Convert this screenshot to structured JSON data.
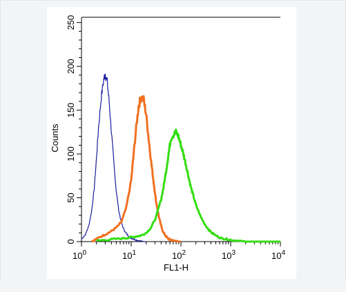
{
  "chart_data": {
    "type": "area",
    "xlabel": "FL1-H",
    "ylabel": "Counts",
    "xscale": "log",
    "xlim": [
      1,
      10000
    ],
    "ylim": [
      0,
      256
    ],
    "x_ticks": [
      {
        "value": 1,
        "base": "10",
        "exp": "0"
      },
      {
        "value": 10,
        "base": "10",
        "exp": "1"
      },
      {
        "value": 100,
        "base": "10",
        "exp": "2"
      },
      {
        "value": 1000,
        "base": "10",
        "exp": "3"
      },
      {
        "value": 10000,
        "base": "10",
        "exp": "4"
      }
    ],
    "y_ticks": [
      {
        "value": 0,
        "label": "0"
      },
      {
        "value": 50,
        "label": "50"
      },
      {
        "value": 100,
        "label": "100"
      },
      {
        "value": 150,
        "label": "150"
      },
      {
        "value": 200,
        "label": "200"
      },
      {
        "value": 250,
        "label": "250"
      }
    ],
    "grid": false,
    "series": [
      {
        "color": "#1a1a9e",
        "stroke_width": 1.2,
        "x": [
          1.0,
          1.2,
          1.4,
          1.6,
          1.8,
          2.0,
          2.2,
          2.5,
          2.8,
          3.0,
          3.3,
          3.6,
          4.0,
          4.5,
          5.0,
          5.6,
          6.3,
          7.1,
          8.0,
          9.0,
          10.0,
          11.2,
          12.6,
          14.1,
          15.8,
          17.8,
          20.0
        ],
        "values": [
          3,
          8,
          18,
          35,
          60,
          95,
          130,
          165,
          185,
          192,
          182,
          160,
          125,
          88,
          58,
          36,
          22,
          14,
          9,
          6,
          4,
          3,
          2,
          1,
          1,
          0,
          0
        ]
      },
      {
        "color": "#f07020",
        "stroke_width": 3,
        "x": [
          1.6,
          2.0,
          2.5,
          3.2,
          4.0,
          5.0,
          6.3,
          7.9,
          10.0,
          11.2,
          12.6,
          14.1,
          15.8,
          17.8,
          20.0,
          22.4,
          25.1,
          28.2,
          31.6,
          35.5,
          39.8,
          44.7,
          50.1,
          56.2,
          63.1,
          70.8,
          79.4,
          89.1,
          100.0
        ],
        "values": [
          0,
          3,
          6,
          9,
          12,
          16,
          22,
          38,
          70,
          100,
          130,
          155,
          165,
          162,
          145,
          118,
          92,
          68,
          46,
          30,
          18,
          10,
          6,
          3,
          2,
          1,
          1,
          0,
          0
        ]
      },
      {
        "color": "#33dd11",
        "stroke_width": 3,
        "x": [
          2.0,
          3.2,
          5.0,
          7.9,
          10.0,
          12.6,
          15.8,
          20.0,
          25.1,
          31.6,
          39.8,
          44.7,
          50.1,
          56.2,
          63.1,
          70.8,
          79.4,
          89.1,
          100.0,
          112.2,
          125.9,
          141.3,
          158.5,
          177.8,
          199.5,
          251.2,
          316.2,
          398.1,
          501.2,
          631.0,
          794.3,
          1000.0,
          1258.9,
          1584.9,
          1995.3,
          2511.9,
          3162.3,
          5011.9,
          10000.0
        ],
        "values": [
          1,
          2,
          3,
          4,
          5,
          6,
          7,
          10,
          16,
          28,
          48,
          62,
          80,
          100,
          118,
          122,
          125,
          120,
          110,
          100,
          88,
          75,
          62,
          52,
          42,
          28,
          18,
          11,
          7,
          4,
          3,
          2,
          1,
          1,
          0,
          0,
          0,
          0,
          0
        ]
      }
    ]
  }
}
